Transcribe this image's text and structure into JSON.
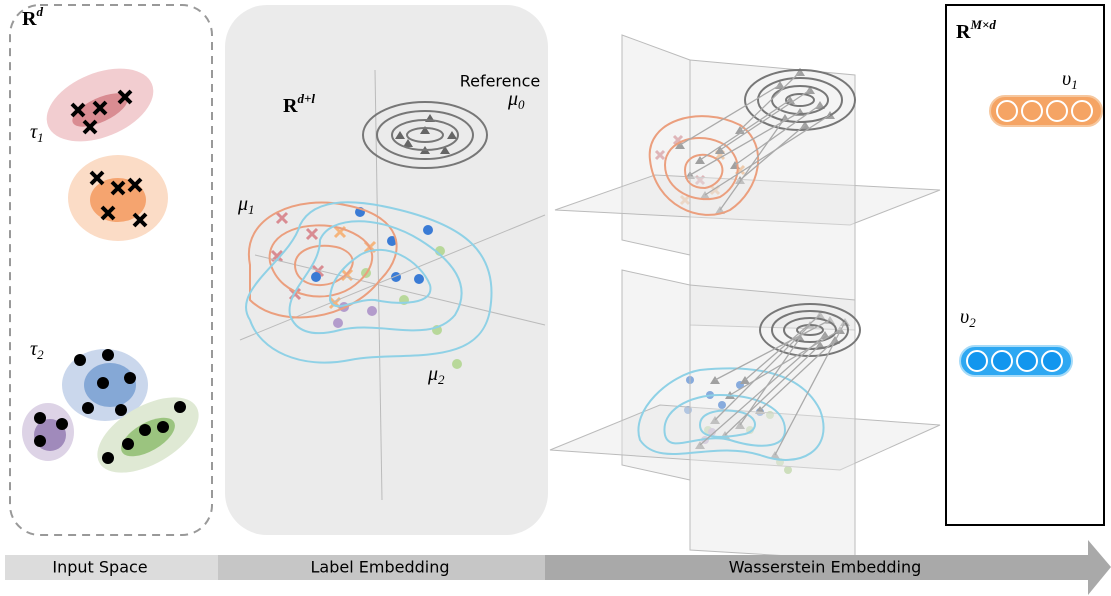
{
  "input": {
    "space": {
      "base": "R",
      "sup": "d"
    },
    "tasks": [
      {
        "base": "τ",
        "sub": "1"
      },
      {
        "base": "τ",
        "sub": "2"
      }
    ]
  },
  "label_embedding": {
    "space": {
      "base": "R",
      "sup": "d+l"
    },
    "reference": "Reference",
    "reference_measure": {
      "base": "μ",
      "sub": "0"
    },
    "measures": [
      {
        "base": "μ",
        "sub": "1"
      },
      {
        "base": "μ",
        "sub": "2"
      }
    ]
  },
  "output": {
    "space": {
      "base": "R",
      "sup": "M×d"
    },
    "vectors": [
      {
        "base": "υ",
        "sub": "1"
      },
      {
        "base": "υ",
        "sub": "2"
      }
    ]
  },
  "stages": [
    "Input Space",
    "Label Embedding",
    "Wasserstein Embedding"
  ]
}
